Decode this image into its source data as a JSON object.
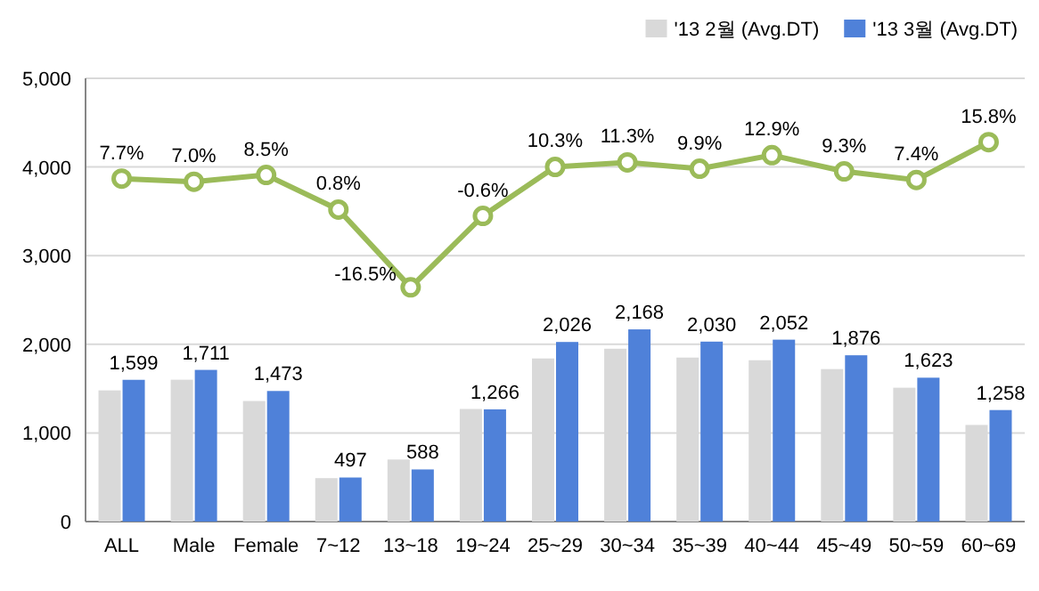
{
  "chart_data": {
    "type": "bar",
    "categories": [
      "ALL",
      "Male",
      "Female",
      "7~12",
      "13~18",
      "19~24",
      "25~29",
      "30~34",
      "35~39",
      "40~44",
      "45~49",
      "50~59",
      "60~69"
    ],
    "series": [
      {
        "name": "'13 2월 (Avg.DT)",
        "color": "#d9d9d9",
        "values": [
          1480,
          1600,
          1360,
          490,
          700,
          1270,
          1840,
          1950,
          1850,
          1820,
          1720,
          1510,
          1090
        ]
      },
      {
        "name": "'13 3월 (Avg.DT)",
        "color": "#4f81d9",
        "values": [
          1599,
          1711,
          1473,
          497,
          588,
          1266,
          2026,
          2168,
          2030,
          2052,
          1876,
          1623,
          1258
        ],
        "value_labels": [
          "1,599",
          "1,711",
          "1,473",
          "497",
          "588",
          "1,266",
          "2,026",
          "2,168",
          "2,030",
          "2,052",
          "1,876",
          "1,623",
          "1,258"
        ]
      },
      {
        "type": "line",
        "axis": "y2",
        "color": "#9bbb59",
        "marker": "circle",
        "values": [
          7.7,
          7.0,
          8.5,
          0.8,
          -16.5,
          -0.6,
          10.3,
          11.3,
          9.9,
          12.9,
          9.3,
          7.4,
          15.8
        ],
        "value_labels": [
          "7.7%",
          "7.0%",
          "8.5%",
          "0.8%",
          "-16.5%",
          "-0.6%",
          "10.3%",
          "11.3%",
          "9.9%",
          "12.9%",
          "9.3%",
          "7.4%",
          "15.8%"
        ]
      }
    ],
    "ylim": [
      0,
      5000
    ],
    "yticks": [
      {
        "value": 0,
        "label": "0"
      },
      {
        "value": 1000,
        "label": "1,000"
      },
      {
        "value": 2000,
        "label": "2,000"
      },
      {
        "value": 3000,
        "label": "3,000"
      },
      {
        "value": 4000,
        "label": "4,000"
      },
      {
        "value": 5000,
        "label": "5,000"
      }
    ],
    "y2lim": [
      -68.6,
      30
    ],
    "grid": "y",
    "legend": "top right"
  }
}
